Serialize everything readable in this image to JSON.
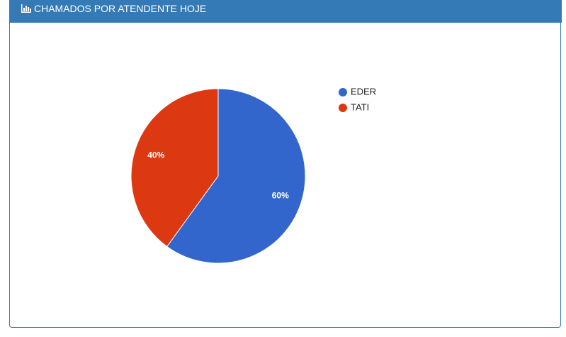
{
  "chart_data": {
    "type": "pie",
    "title": "CHAMADOS POR ATENDENTE HOJE",
    "categories": [
      "EDER",
      "TATI"
    ],
    "values": [
      60,
      40
    ],
    "value_labels": [
      "60%",
      "40%"
    ],
    "colors": [
      "#3366cc",
      "#dc3912"
    ],
    "legend": "right"
  }
}
